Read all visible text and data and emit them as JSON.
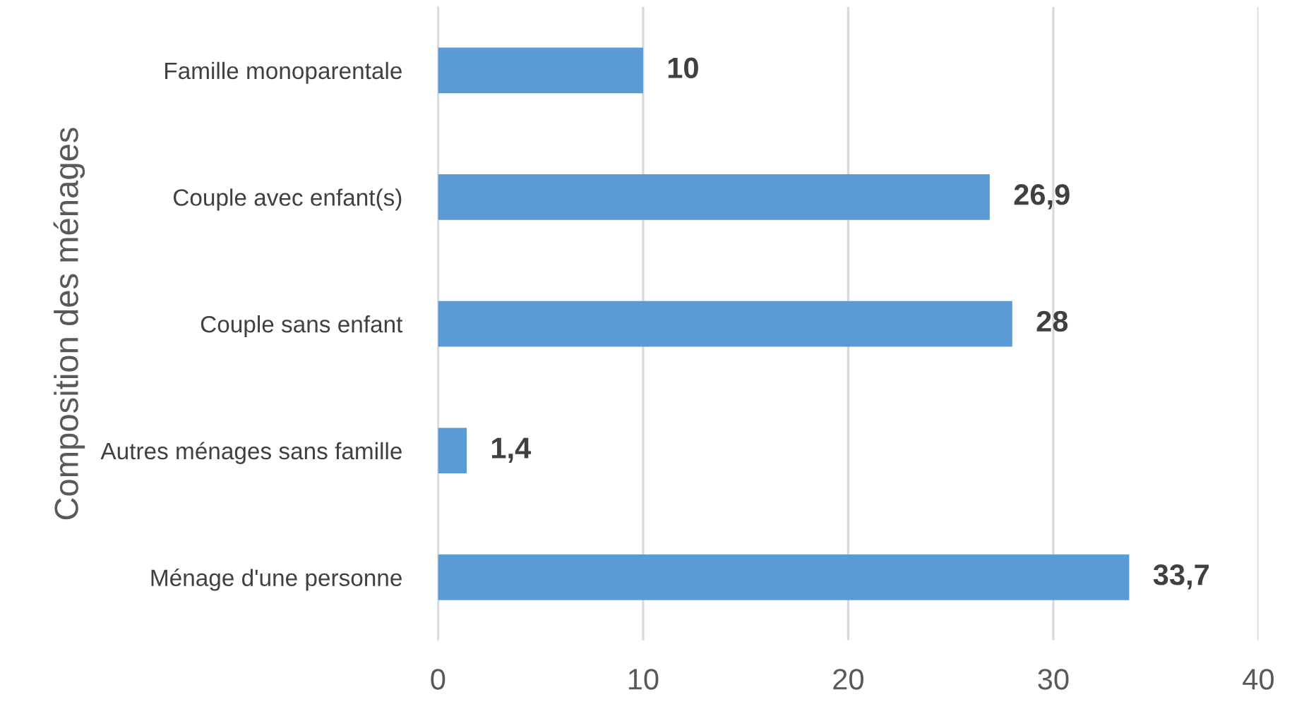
{
  "chart_data": {
    "type": "bar",
    "orientation": "horizontal",
    "ylabel": "Composition des ménages",
    "categories": [
      "Famille monoparentale",
      "Couple avec enfant(s)",
      "Couple sans enfant",
      "Autres ménages sans famille",
      "Ménage d'une personne"
    ],
    "values": [
      10,
      26.9,
      28,
      1.4,
      33.7
    ],
    "value_labels": [
      "10",
      "26,9",
      "28",
      "1,4",
      "33,7"
    ],
    "color": "#5b9bd5",
    "xlim": [
      0,
      40
    ],
    "xticks": [
      0,
      10,
      20,
      30,
      40
    ],
    "grid": "x",
    "legend": false
  }
}
